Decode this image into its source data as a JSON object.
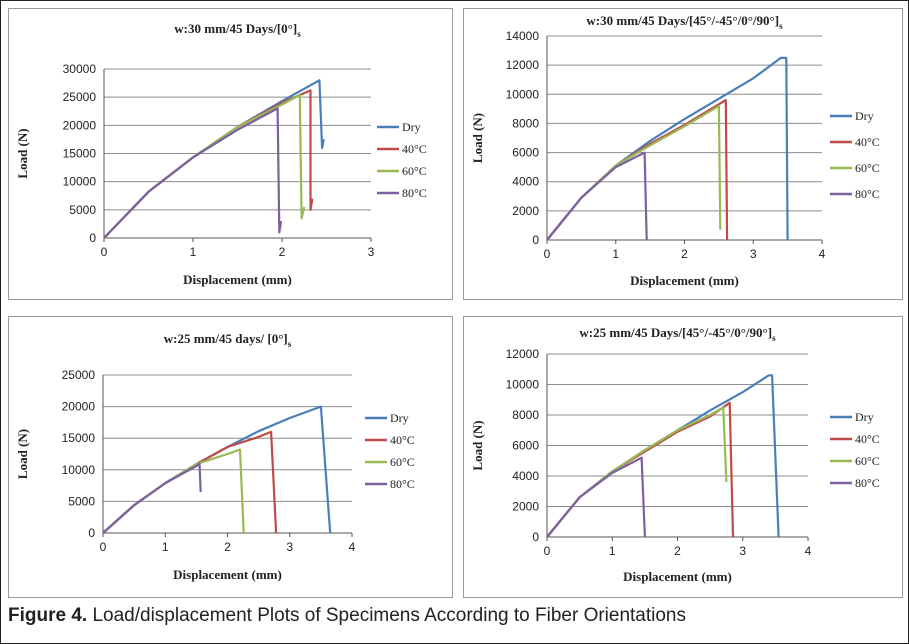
{
  "figure": {
    "caption_label": "Figure 4.",
    "caption_text": " Load/displacement Plots of Specimens According to Fiber Orientations"
  },
  "chart_data": [
    {
      "type": "line",
      "title": "w:30 mm/45  Days/[0°]",
      "title_sub": "s",
      "xlabel": "Displacement (mm)",
      "ylabel": "Load (N)",
      "xlim": [
        0,
        3
      ],
      "ylim": [
        0,
        30000
      ],
      "xticks": [
        "0",
        "1",
        "2",
        "3"
      ],
      "yticks": [
        "0",
        "5000",
        "10000",
        "15000",
        "20000",
        "25000",
        "30000"
      ],
      "grid": "horizontal",
      "legend": "right",
      "series": [
        {
          "name": "Dry",
          "color": "#4a7ebb",
          "points": [
            [
              0,
              0
            ],
            [
              0.5,
              8200
            ],
            [
              1,
              14300
            ],
            [
              1.5,
              19700
            ],
            [
              2,
              24300
            ],
            [
              2.42,
              28000
            ],
            [
              2.45,
              16000
            ],
            [
              2.47,
              17500
            ]
          ]
        },
        {
          "name": "40°C",
          "color": "#be4b48",
          "points": [
            [
              0,
              0
            ],
            [
              0.5,
              8200
            ],
            [
              1,
              14300
            ],
            [
              1.5,
              19700
            ],
            [
              2,
              24000
            ],
            [
              2.32,
              26200
            ],
            [
              2.32,
              5000
            ],
            [
              2.34,
              7000
            ]
          ]
        },
        {
          "name": "60°C",
          "color": "#98b954",
          "points": [
            [
              0,
              0
            ],
            [
              0.5,
              8200
            ],
            [
              1,
              14300
            ],
            [
              1.5,
              19700
            ],
            [
              2,
              23700
            ],
            [
              2.2,
              25400
            ],
            [
              2.22,
              3500
            ],
            [
              2.25,
              5500
            ]
          ]
        },
        {
          "name": "80°C",
          "color": "#7d60a0",
          "points": [
            [
              0,
              0
            ],
            [
              0.5,
              8200
            ],
            [
              1,
              14300
            ],
            [
              1.5,
              19200
            ],
            [
              1.95,
              23000
            ],
            [
              1.97,
              1000
            ],
            [
              1.99,
              3000
            ]
          ]
        }
      ]
    },
    {
      "type": "line",
      "title": "w:30 mm/45  Days/[45°/-45°/0°/90°]",
      "title_sub": "s",
      "xlabel": "Displacement (mm)",
      "ylabel": "Load (N)",
      "xlim": [
        0,
        4
      ],
      "ylim": [
        0,
        14000
      ],
      "xticks": [
        "0",
        "1",
        "2",
        "3",
        "4"
      ],
      "yticks": [
        "0",
        "2000",
        "4000",
        "6000",
        "8000",
        "10000",
        "12000",
        "14000"
      ],
      "grid": "horizontal",
      "legend": "right",
      "series": [
        {
          "name": "Dry",
          "color": "#4a7ebb",
          "points": [
            [
              0,
              0
            ],
            [
              0.5,
              2900
            ],
            [
              1,
              5100
            ],
            [
              1.5,
              6800
            ],
            [
              2,
              8300
            ],
            [
              2.5,
              9700
            ],
            [
              3,
              11100
            ],
            [
              3.4,
              12500
            ],
            [
              3.48,
              12500
            ],
            [
              3.5,
              0
            ]
          ]
        },
        {
          "name": "40°C",
          "color": "#be4b48",
          "points": [
            [
              0,
              0
            ],
            [
              0.5,
              2900
            ],
            [
              1,
              5100
            ],
            [
              1.5,
              6600
            ],
            [
              2,
              7900
            ],
            [
              2.6,
              9600
            ],
            [
              2.62,
              0
            ]
          ]
        },
        {
          "name": "60°C",
          "color": "#98b954",
          "points": [
            [
              0,
              0
            ],
            [
              0.5,
              2900
            ],
            [
              1,
              5100
            ],
            [
              1.5,
              6500
            ],
            [
              2,
              7800
            ],
            [
              2.5,
              9200
            ],
            [
              2.52,
              700
            ]
          ]
        },
        {
          "name": "80°C",
          "color": "#7d60a0",
          "points": [
            [
              0,
              0
            ],
            [
              0.5,
              2900
            ],
            [
              1,
              5000
            ],
            [
              1.42,
              6000
            ],
            [
              1.45,
              0
            ]
          ]
        }
      ]
    },
    {
      "type": "line",
      "title": "w:25 mm/45  days/ [0°]",
      "title_sub": "s",
      "xlabel": "Displacement (mm)",
      "ylabel": "Load (N)",
      "xlim": [
        0,
        4
      ],
      "ylim": [
        0,
        25000
      ],
      "xticks": [
        "0",
        "1",
        "2",
        "3",
        "4"
      ],
      "yticks": [
        "0",
        "5000",
        "10000",
        "15000",
        "20000",
        "25000"
      ],
      "grid": "horizontal",
      "legend": "right",
      "series": [
        {
          "name": "Dry",
          "color": "#4a7ebb",
          "points": [
            [
              0,
              0
            ],
            [
              0.5,
              4400
            ],
            [
              1,
              7900
            ],
            [
              1.5,
              10900
            ],
            [
              2,
              13600
            ],
            [
              2.5,
              16100
            ],
            [
              3,
              18200
            ],
            [
              3.5,
              20000
            ],
            [
              3.65,
              0
            ]
          ]
        },
        {
          "name": "40°C",
          "color": "#be4b48",
          "points": [
            [
              0,
              0
            ],
            [
              0.5,
              4400
            ],
            [
              1,
              7900
            ],
            [
              1.5,
              10900
            ],
            [
              2,
              13600
            ],
            [
              2.5,
              15200
            ],
            [
              2.7,
              16000
            ],
            [
              2.78,
              0
            ]
          ]
        },
        {
          "name": "60°C",
          "color": "#98b954",
          "points": [
            [
              0,
              0
            ],
            [
              0.5,
              4400
            ],
            [
              1,
              7900
            ],
            [
              1.5,
              10900
            ],
            [
              2,
              12500
            ],
            [
              2.2,
              13200
            ],
            [
              2.26,
              0
            ]
          ]
        },
        {
          "name": "80°C",
          "color": "#7d60a0",
          "points": [
            [
              0,
              0
            ],
            [
              0.5,
              4400
            ],
            [
              1,
              7900
            ],
            [
              1.5,
              10600
            ],
            [
              1.55,
              11000
            ],
            [
              1.57,
              6500
            ]
          ]
        }
      ]
    },
    {
      "type": "line",
      "title": "w:25 mm/45  Days/[45°/-45°/0°/90°]",
      "title_sub": "s",
      "xlabel": "Displacement (mm)",
      "ylabel": "Load (N)",
      "xlim": [
        0,
        4
      ],
      "ylim": [
        0,
        12000
      ],
      "xticks": [
        "0",
        "1",
        "2",
        "3",
        "4"
      ],
      "yticks": [
        "0",
        "2000",
        "4000",
        "6000",
        "8000",
        "10000",
        "12000"
      ],
      "grid": "horizontal",
      "legend": "right",
      "series": [
        {
          "name": "Dry",
          "color": "#4a7ebb",
          "points": [
            [
              0,
              0
            ],
            [
              0.5,
              2600
            ],
            [
              1,
              4300
            ],
            [
              1.5,
              5700
            ],
            [
              2,
              7000
            ],
            [
              2.5,
              8300
            ],
            [
              3,
              9500
            ],
            [
              3.4,
              10600
            ],
            [
              3.45,
              10600
            ],
            [
              3.55,
              0
            ]
          ]
        },
        {
          "name": "40°C",
          "color": "#be4b48",
          "points": [
            [
              0,
              0
            ],
            [
              0.5,
              2600
            ],
            [
              1,
              4300
            ],
            [
              1.5,
              5600
            ],
            [
              2,
              6900
            ],
            [
              2.5,
              7900
            ],
            [
              2.8,
              8800
            ],
            [
              2.85,
              0
            ]
          ]
        },
        {
          "name": "60°C",
          "color": "#98b954",
          "points": [
            [
              0,
              0
            ],
            [
              0.5,
              2600
            ],
            [
              1,
              4300
            ],
            [
              1.5,
              5700
            ],
            [
              2,
              7000
            ],
            [
              2.5,
              8000
            ],
            [
              2.7,
              8500
            ],
            [
              2.75,
              3600
            ]
          ]
        },
        {
          "name": "80°C",
          "color": "#7d60a0",
          "points": [
            [
              0,
              0
            ],
            [
              0.5,
              2600
            ],
            [
              1,
              4200
            ],
            [
              1.45,
              5200
            ],
            [
              1.5,
              0
            ]
          ]
        }
      ]
    }
  ]
}
